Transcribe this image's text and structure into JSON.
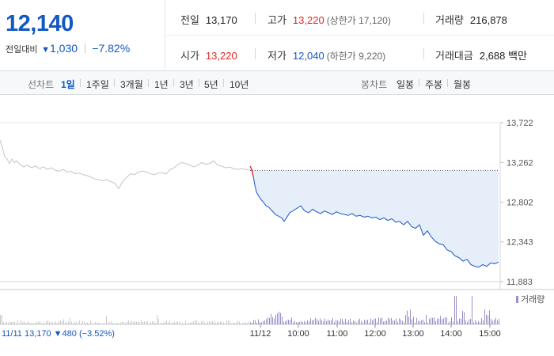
{
  "header": {
    "current_price": "12,140",
    "change_label": "전일대비",
    "change_arrow": "▼",
    "change_amount": "1,030",
    "change_percent": "−7.82%",
    "stats": {
      "prev_close": {
        "label": "전일",
        "value": "13,170"
      },
      "high": {
        "label": "고가",
        "value": "13,220",
        "sub": "(상한가 17,120)"
      },
      "volume": {
        "label": "거래량",
        "value": "216,878"
      },
      "open": {
        "label": "시가",
        "value": "13,220"
      },
      "low": {
        "label": "저가",
        "value": "12,040",
        "sub": "(하한가 9,220)"
      },
      "trade_value": {
        "label": "거래대금",
        "value": "2,688 백만"
      }
    }
  },
  "toolbar": {
    "line_chart_label": "선차트",
    "periods": [
      "1일",
      "1주일",
      "3개월",
      "1년",
      "3년",
      "5년",
      "10년"
    ],
    "active_period": "1일",
    "candle_chart_label": "봉차트",
    "candle_periods": [
      "일봉",
      "주봉",
      "월봉"
    ]
  },
  "colors": {
    "up": "#e52525",
    "down": "#1259c3",
    "prev_day_line": "#c4c4c4",
    "today_line": "#2b63c9",
    "today_fill": "#e6eefa",
    "volume_prev": "#c8c8c8",
    "volume_today": "#9b8ec9"
  },
  "chart_data": {
    "type": "line",
    "ylim": [
      11883,
      13722
    ],
    "yticks": [
      13722,
      13262,
      12802,
      12343,
      11883
    ],
    "ytick_labels": [
      "13,722",
      "13,262",
      "12,802",
      "12,343",
      "11,883"
    ],
    "prev_close": 13170,
    "prev_day": {
      "date": "11/11",
      "x": [
        0,
        3,
        6,
        9,
        12,
        15,
        18,
        21,
        25,
        30,
        35,
        40,
        45,
        50,
        55,
        60,
        65,
        70,
        75,
        80,
        85,
        90,
        95,
        100,
        105,
        110,
        115,
        120,
        125,
        130,
        135,
        140,
        145,
        150,
        155,
        160,
        165,
        170,
        175,
        180,
        185,
        190,
        195,
        200,
        205,
        210,
        215,
        220,
        225,
        230,
        235,
        240,
        245,
        250,
        255,
        260,
        265,
        270,
        275,
        280,
        285,
        290,
        295,
        300,
        305,
        310,
        315
      ],
      "values": [
        13520,
        13430,
        13330,
        13300,
        13250,
        13300,
        13260,
        13280,
        13240,
        13210,
        13230,
        13200,
        13220,
        13190,
        13210,
        13180,
        13200,
        13170,
        13160,
        13180,
        13150,
        13160,
        13130,
        13140,
        13120,
        13110,
        13090,
        13070,
        13060,
        13050,
        13060,
        13040,
        13020,
        12960,
        13040,
        13090,
        13130,
        13120,
        13150,
        13160,
        13150,
        13130,
        13120,
        13140,
        13140,
        13130,
        13180,
        13200,
        13240,
        13260,
        13250,
        13230,
        13210,
        13230,
        13260,
        13240,
        13250,
        13280,
        13230,
        13220,
        13200,
        13210,
        13190,
        13180,
        13190,
        13180,
        13180
      ]
    },
    "today": {
      "date": "11/12",
      "time_labels": [
        "10:00",
        "11:00",
        "12:00",
        "13:00",
        "14:00",
        "15:00"
      ],
      "time_label_x": [
        377,
        426,
        474,
        522,
        570,
        619
      ],
      "x": [
        316,
        318,
        320,
        322,
        324,
        327,
        330,
        333,
        336,
        340,
        344,
        348,
        352,
        356,
        359,
        362,
        366,
        370,
        375,
        380,
        385,
        390,
        395,
        400,
        405,
        410,
        415,
        420,
        425,
        430,
        435,
        440,
        445,
        450,
        455,
        460,
        465,
        470,
        475,
        480,
        485,
        490,
        495,
        500,
        505,
        510,
        515,
        520,
        525,
        530,
        535,
        540,
        545,
        550,
        555,
        560,
        565,
        570,
        575,
        580,
        585,
        590,
        595,
        600,
        605,
        610,
        615,
        620,
        625,
        630
      ],
      "values": [
        13220,
        13180,
        13100,
        13000,
        12920,
        12870,
        12830,
        12800,
        12760,
        12740,
        12700,
        12660,
        12640,
        12620,
        12580,
        12620,
        12680,
        12700,
        12730,
        12760,
        12700,
        12680,
        12720,
        12690,
        12670,
        12700,
        12680,
        12660,
        12690,
        12670,
        12660,
        12650,
        12670,
        12640,
        12650,
        12630,
        12640,
        12620,
        12630,
        12600,
        12620,
        12590,
        12610,
        12570,
        12580,
        12540,
        12580,
        12520,
        12500,
        12540,
        12420,
        12470,
        12400,
        12350,
        12320,
        12310,
        12250,
        12230,
        12180,
        12160,
        12120,
        12140,
        12080,
        12060,
        12050,
        12080,
        12060,
        12100,
        12090,
        12110
      ]
    },
    "volume_legend": "거래량",
    "volume_ref_label": "11/11  13,170 ▼480 (−3.52%)",
    "xlabel": "",
    "ylabel": ""
  }
}
